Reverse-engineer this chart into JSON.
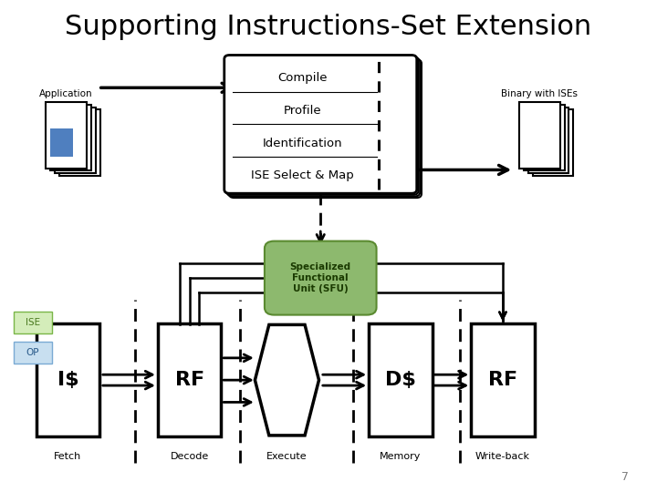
{
  "title": "Supporting Instructions-Set Extension",
  "title_fontsize": 22,
  "bg_color": "#ffffff",
  "compile_steps": [
    "Compile",
    "Profile",
    "Identification",
    "ISE Select & Map"
  ],
  "sfu_color": "#8db96e",
  "sfu_label": "Specialized\nFunctional\nUnit (SFU)"
}
